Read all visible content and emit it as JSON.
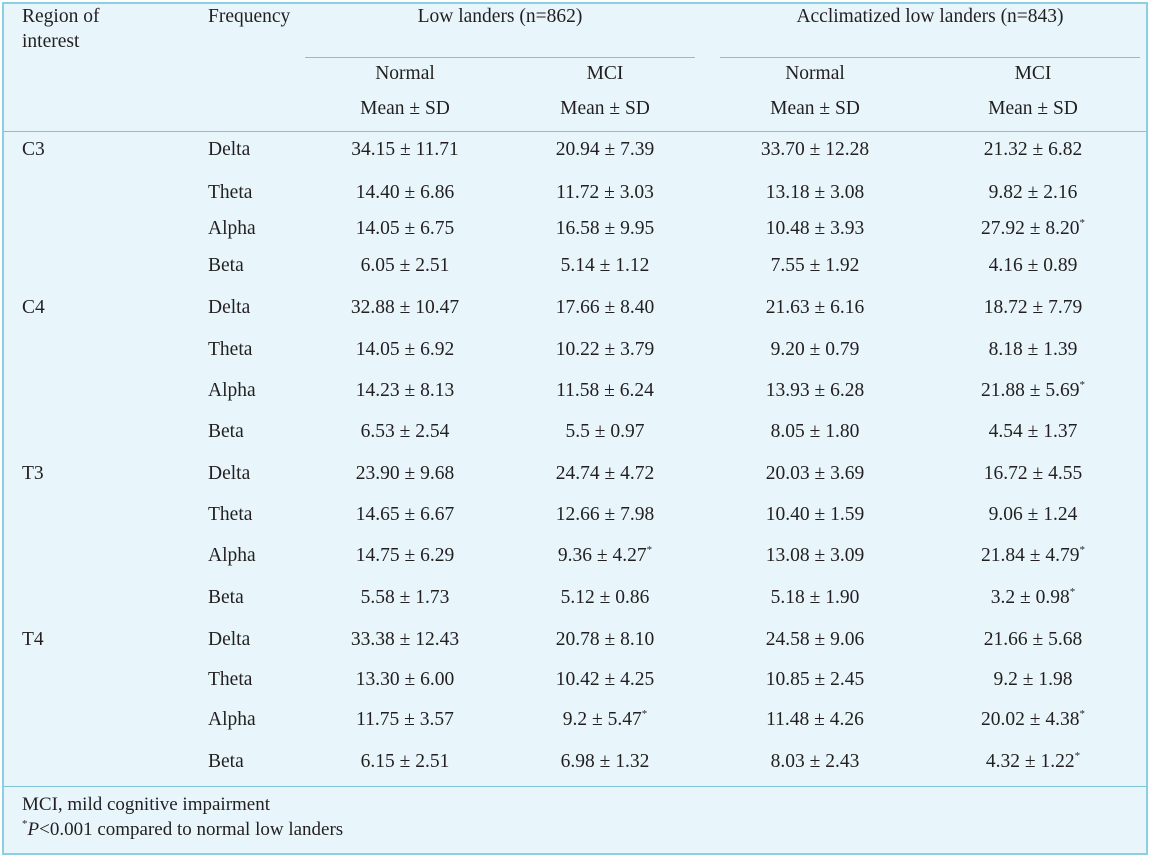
{
  "header": {
    "region_line1": "Region of",
    "region_line2": "interest",
    "frequency": "Frequency",
    "group_low": "Low landers (n=862)",
    "group_accl": "Acclimatized low landers (n=843)",
    "sub_normal": "Normal",
    "sub_mci": "MCI",
    "sub_stat": "Mean ± SD"
  },
  "rows": [
    {
      "region": "C3",
      "freq": "Delta",
      "ln": "34.15 ± 11.71",
      "lm": "20.94 ± 7.39",
      "an": "33.70 ± 12.28",
      "am": "21.32 ± 6.82",
      "lm_sig": "",
      "am_sig": ""
    },
    {
      "region": "",
      "freq": "Theta",
      "ln": "14.40 ± 6.86",
      "lm": "11.72 ± 3.03",
      "an": "13.18 ± 3.08",
      "am": "9.82 ± 2.16",
      "lm_sig": "",
      "am_sig": ""
    },
    {
      "region": "",
      "freq": "Alpha",
      "ln": "14.05 ± 6.75",
      "lm": "16.58 ± 9.95",
      "an": "10.48 ± 3.93",
      "am": "27.92 ± 8.20",
      "lm_sig": "",
      "am_sig": "*"
    },
    {
      "region": "",
      "freq": "Beta",
      "ln": "6.05 ± 2.51",
      "lm": "5.14 ± 1.12",
      "an": "7.55 ± 1.92",
      "am": "4.16 ± 0.89",
      "lm_sig": "",
      "am_sig": ""
    },
    {
      "region": "C4",
      "freq": "Delta",
      "ln": "32.88 ± 10.47",
      "lm": "17.66 ± 8.40",
      "an": "21.63 ± 6.16",
      "am": "18.72 ± 7.79",
      "lm_sig": "",
      "am_sig": ""
    },
    {
      "region": "",
      "freq": "Theta",
      "ln": "14.05 ± 6.92",
      "lm": "10.22 ± 3.79",
      "an": "9.20 ± 0.79",
      "am": "8.18 ± 1.39",
      "lm_sig": "",
      "am_sig": ""
    },
    {
      "region": "",
      "freq": "Alpha",
      "ln": "14.23 ± 8.13",
      "lm": "11.58 ± 6.24",
      "an": "13.93 ± 6.28",
      "am": "21.88 ± 5.69",
      "lm_sig": "",
      "am_sig": "*"
    },
    {
      "region": "",
      "freq": "Beta",
      "ln": "6.53 ± 2.54",
      "lm": "5.5 ± 0.97",
      "an": "8.05 ± 1.80",
      "am": "4.54 ± 1.37",
      "lm_sig": "",
      "am_sig": ""
    },
    {
      "region": "T3",
      "freq": "Delta",
      "ln": "23.90 ± 9.68",
      "lm": "24.74 ± 4.72",
      "an": "20.03 ± 3.69",
      "am": "16.72 ± 4.55",
      "lm_sig": "",
      "am_sig": ""
    },
    {
      "region": "",
      "freq": "Theta",
      "ln": "14.65 ± 6.67",
      "lm": "12.66 ± 7.98",
      "an": "10.40 ± 1.59",
      "am": "9.06 ± 1.24",
      "lm_sig": "",
      "am_sig": ""
    },
    {
      "region": "",
      "freq": "Alpha",
      "ln": "14.75 ± 6.29",
      "lm": "9.36 ± 4.27",
      "an": "13.08 ± 3.09",
      "am": "21.84 ± 4.79",
      "lm_sig": "*",
      "am_sig": "*"
    },
    {
      "region": "",
      "freq": "Beta",
      "ln": "5.58 ± 1.73",
      "lm": "5.12 ± 0.86",
      "an": "5.18 ± 1.90",
      "am": "3.2 ± 0.98",
      "lm_sig": "",
      "am_sig": "*"
    },
    {
      "region": "T4",
      "freq": "Delta",
      "ln": "33.38 ± 12.43",
      "lm": "20.78 ± 8.10",
      "an": "24.58 ± 9.06",
      "am": "21.66 ± 5.68",
      "lm_sig": "",
      "am_sig": ""
    },
    {
      "region": "",
      "freq": "Theta",
      "ln": "13.30 ± 6.00",
      "lm": "10.42 ± 4.25",
      "an": "10.85 ± 2.45",
      "am": "9.2 ± 1.98",
      "lm_sig": "",
      "am_sig": ""
    },
    {
      "region": "",
      "freq": "Alpha",
      "ln": "11.75 ± 3.57",
      "lm": "9.2 ± 5.47",
      "an": "11.48 ± 4.26",
      "am": "20.02 ± 4.38",
      "lm_sig": "*",
      "am_sig": "*"
    },
    {
      "region": "",
      "freq": "Beta",
      "ln": "6.15 ± 2.51",
      "lm": "6.98 ± 1.32",
      "an": "8.03 ± 2.43",
      "am": "4.32 ± 1.22",
      "lm_sig": "",
      "am_sig": "*"
    }
  ],
  "footnotes": {
    "abbrev": "MCI, mild cognitive impairment",
    "sig_mark": "*",
    "sig_p": "P",
    "sig_rest": "<0.001 compared to normal low landers"
  },
  "colors": {
    "background": "#e8f6fb",
    "border": "#8ccfe0",
    "rule": "#7fc3d9",
    "text": "#231f20"
  }
}
